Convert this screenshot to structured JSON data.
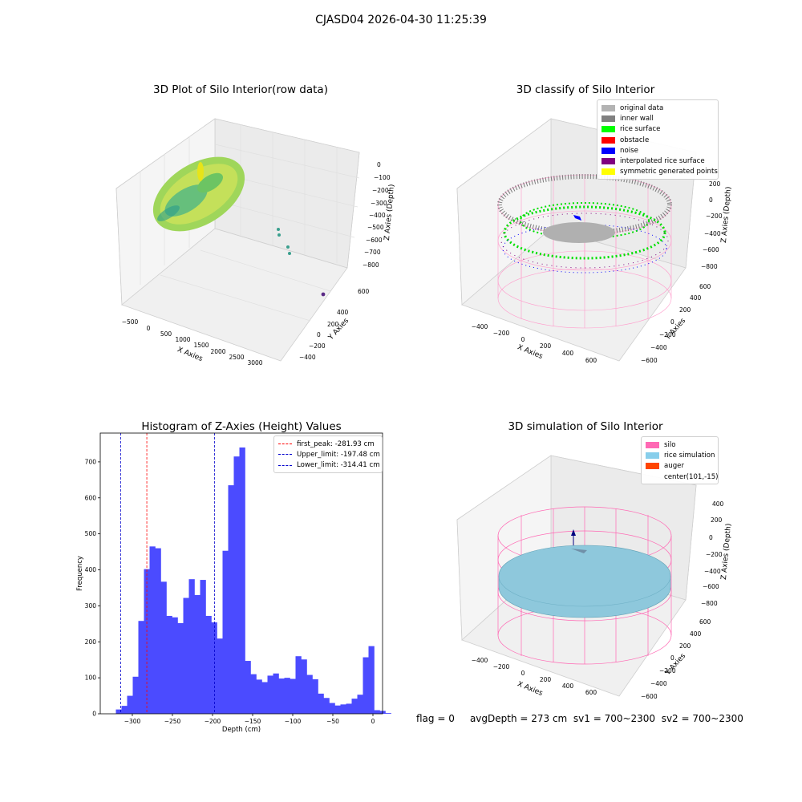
{
  "suptitle": "CJASD04 2026-04-30 11:25:39",
  "panels": {
    "raw": {
      "title": "3D Plot of Silo Interior(row data)",
      "xlabel": "X Axies",
      "ylabel": "Y Axies",
      "zlabel": "Z Axies (Depth)",
      "xticks": [
        "−500",
        "0",
        "500",
        "1000",
        "1500",
        "2000",
        "2500",
        "3000"
      ],
      "yticks": [
        "600",
        "400",
        "200",
        "0",
        "−200",
        "−400",
        "−600"
      ],
      "zticks": [
        "0",
        "−100",
        "−200",
        "−300",
        "−400",
        "−500",
        "−600",
        "−700",
        "−800"
      ]
    },
    "classify": {
      "title": "3D classify of Silo Interior",
      "xlabel": "X Axies",
      "ylabel": "Y Axies",
      "zlabel": "Z Axies (Depth)",
      "xticks": [
        "−400",
        "−200",
        "0",
        "200",
        "400",
        "600"
      ],
      "yticks": [
        "600",
        "400",
        "200",
        "0",
        "−200",
        "−400",
        "−600"
      ],
      "zticks": [
        "200",
        "0",
        "−200",
        "−400",
        "−600",
        "−800"
      ],
      "legend": [
        {
          "label": "original data",
          "color": "#b3b3b3"
        },
        {
          "label": "inner wall",
          "color": "#808080"
        },
        {
          "label": "rice surface",
          "color": "#00ff00"
        },
        {
          "label": "obstacle",
          "color": "#ff0000"
        },
        {
          "label": "noise",
          "color": "#0000ff"
        },
        {
          "label": "interpolated rice surface",
          "color": "#800080"
        },
        {
          "label": "symmetric generated points",
          "color": "#ffff00"
        }
      ]
    },
    "simulation": {
      "title": "3D simulation of Silo Interior",
      "xlabel": "X Axies",
      "ylabel": "Y Axies",
      "zlabel": "Z Axies (Depth)",
      "xticks": [
        "−400",
        "−200",
        "0",
        "200",
        "400",
        "600"
      ],
      "yticks": [
        "600",
        "400",
        "200",
        "0",
        "−200",
        "−400",
        "−600"
      ],
      "zticks": [
        "400",
        "200",
        "0",
        "−200",
        "−400",
        "−600",
        "−800"
      ],
      "legend": [
        {
          "label": "silo",
          "color": "#ff69b4"
        },
        {
          "label": "rice simulation",
          "color": "#87ceeb"
        },
        {
          "label": "auger",
          "color": "#ff4500"
        },
        {
          "label": "center(101,-15)",
          "color": ""
        }
      ]
    }
  },
  "chart_data": {
    "type": "bar",
    "title": "Histogram of Z-Axies (Height) Values",
    "xlabel": "Depth (cm)",
    "ylabel": "Frequency",
    "color": "#4b4bff",
    "bin_start": -327.5,
    "bin_width": 7,
    "values": [
      0,
      12,
      22,
      50,
      103,
      258,
      402,
      465,
      460,
      367,
      272,
      268,
      252,
      322,
      374,
      330,
      372,
      272,
      254,
      209,
      453,
      635,
      715,
      740,
      147,
      110,
      95,
      88,
      106,
      112,
      98,
      100,
      97,
      160,
      151,
      108,
      96,
      56,
      44,
      30,
      23,
      26,
      28,
      42,
      53,
      157,
      188,
      10,
      8,
      2
    ],
    "xlim": [
      -340,
      12
    ],
    "ylim": [
      0,
      780
    ],
    "xticks": [
      -300,
      -250,
      -200,
      -150,
      -100,
      -50,
      0
    ],
    "yticks": [
      0,
      100,
      200,
      300,
      400,
      500,
      600,
      700
    ],
    "xtick_labels": [
      "−300",
      "−250",
      "−200",
      "−150",
      "−100",
      "−50",
      "0"
    ],
    "ytick_labels": [
      "0",
      "100",
      "200",
      "300",
      "400",
      "500",
      "600",
      "700"
    ],
    "vlines": [
      {
        "label": "first_peak: -281.93 cm",
        "x": -281.93,
        "color": "#ff0000"
      },
      {
        "label": "Upper_limit: -197.48 cm",
        "x": -197.48,
        "color": "#0000cc"
      },
      {
        "label": "Lower_limit: -314.41 cm",
        "x": -314.41,
        "color": "#0000cc"
      }
    ],
    "legend_position": "top-right"
  },
  "status": {
    "flag": "flag = 0",
    "avg_depth": "avgDepth = 273 cm",
    "sv1": "sv1 = 700~2300",
    "sv2": "sv2 = 700~2300"
  }
}
